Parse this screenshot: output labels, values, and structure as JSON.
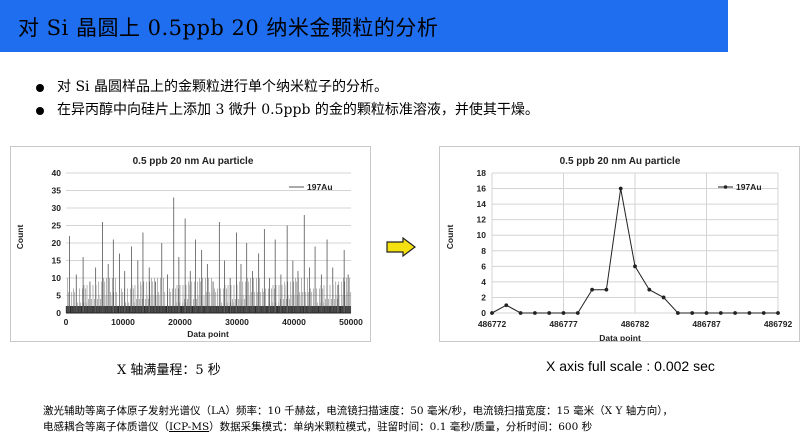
{
  "title": "对 Si 晶圆上 0.5ppb 20 纳米金颗粒的分析",
  "bullets": [
    "对 Si 晶圆样品上的金颗粒进行单个纳米粒子的分析。",
    "在异丙醇中向硅片上添加 3 微升 0.5ppb 的金的颗粒标准溶液，并使其干燥。"
  ],
  "colors": {
    "title_bar": "#1f6ef0",
    "arrow_fill": "#f5e010",
    "arrow_stroke": "#222222"
  },
  "arrow_icon": "right-arrow-icon",
  "captions": {
    "left": "X 轴满量程：5 秒",
    "right": "X axis full scale : 0.002 sec"
  },
  "footer": {
    "line1": "激光辅助等离子体原子发射光谱仪（LA）频率：10 千赫兹，电流镜扫描速度：50 毫米/秒，电流镜扫描宽度：15 毫米（X Y 轴方向），",
    "line2_pre": "电感耦合等离子体质谱仪（",
    "line2_underlined": "ICP-MS",
    "line2_post": "）数据采集模式：单纳米颗粒模式，驻留时间：0.1 毫秒/质量，分析时间：600 秒"
  },
  "chart_data": [
    {
      "type": "line",
      "title": "0.5 ppb 20 nm Au particle",
      "xlabel": "Data point",
      "ylabel": "Count",
      "xlim": [
        0,
        50000
      ],
      "ylim": [
        0,
        40
      ],
      "xticks": [
        "0",
        "10000",
        "20000",
        "30000",
        "40000",
        "50000"
      ],
      "yticks": [
        "0",
        "5",
        "10",
        "15",
        "20",
        "25",
        "30",
        "35",
        "40"
      ],
      "legend": "top-right",
      "series": [
        {
          "name": "197Au",
          "spikes": [
            [
              600,
              22
            ],
            [
              1800,
              11
            ],
            [
              3000,
              16
            ],
            [
              4200,
              9
            ],
            [
              5200,
              13
            ],
            [
              6400,
              26
            ],
            [
              7400,
              14
            ],
            [
              8300,
              21
            ],
            [
              9400,
              17
            ],
            [
              10300,
              12
            ],
            [
              11500,
              19
            ],
            [
              12600,
              15
            ],
            [
              13500,
              23
            ],
            [
              14600,
              13
            ],
            [
              15700,
              9
            ],
            [
              16800,
              20
            ],
            [
              17800,
              11
            ],
            [
              18900,
              33
            ],
            [
              19800,
              16
            ],
            [
              20900,
              27
            ],
            [
              21800,
              12
            ],
            [
              22700,
              21
            ],
            [
              23800,
              18
            ],
            [
              24800,
              14
            ],
            [
              25800,
              9
            ],
            [
              26900,
              26
            ],
            [
              27800,
              15
            ],
            [
              28800,
              10
            ],
            [
              29900,
              23
            ],
            [
              30700,
              14
            ],
            [
              31700,
              20
            ],
            [
              32700,
              12
            ],
            [
              33800,
              17
            ],
            [
              34800,
              24
            ],
            [
              35700,
              10
            ],
            [
              36700,
              21
            ],
            [
              37700,
              11
            ],
            [
              38800,
              25
            ],
            [
              39800,
              15
            ],
            [
              40700,
              12
            ],
            [
              41800,
              28
            ],
            [
              42700,
              13
            ],
            [
              43700,
              19
            ],
            [
              44800,
              11
            ],
            [
              45800,
              21
            ],
            [
              46800,
              13
            ],
            [
              47700,
              8
            ],
            [
              48800,
              18
            ],
            [
              49500,
              11
            ]
          ]
        }
      ]
    },
    {
      "type": "line",
      "title": "0.5 ppb 20 nm Au particle",
      "xlabel": "Data point",
      "ylabel": "Count",
      "xlim": [
        486772,
        486792
      ],
      "ylim": [
        0,
        18
      ],
      "xticks": [
        "486772",
        "486777",
        "486782",
        "486787",
        "486792"
      ],
      "yticks": [
        "0",
        "2",
        "4",
        "6",
        "8",
        "10",
        "12",
        "14",
        "16",
        "18"
      ],
      "legend": "top-right",
      "series": [
        {
          "name": "197Au",
          "x": [
            486772,
            486773,
            486774,
            486775,
            486776,
            486777,
            486778,
            486779,
            486780,
            486781,
            486782,
            486783,
            486784,
            486785,
            486786,
            486787,
            486788,
            486789,
            486790,
            486791,
            486792
          ],
          "y": [
            0,
            1,
            0,
            0,
            0,
            0,
            0,
            3,
            3,
            16,
            6,
            3,
            2,
            0,
            0,
            0,
            0,
            0,
            0,
            0,
            0
          ]
        }
      ]
    }
  ]
}
